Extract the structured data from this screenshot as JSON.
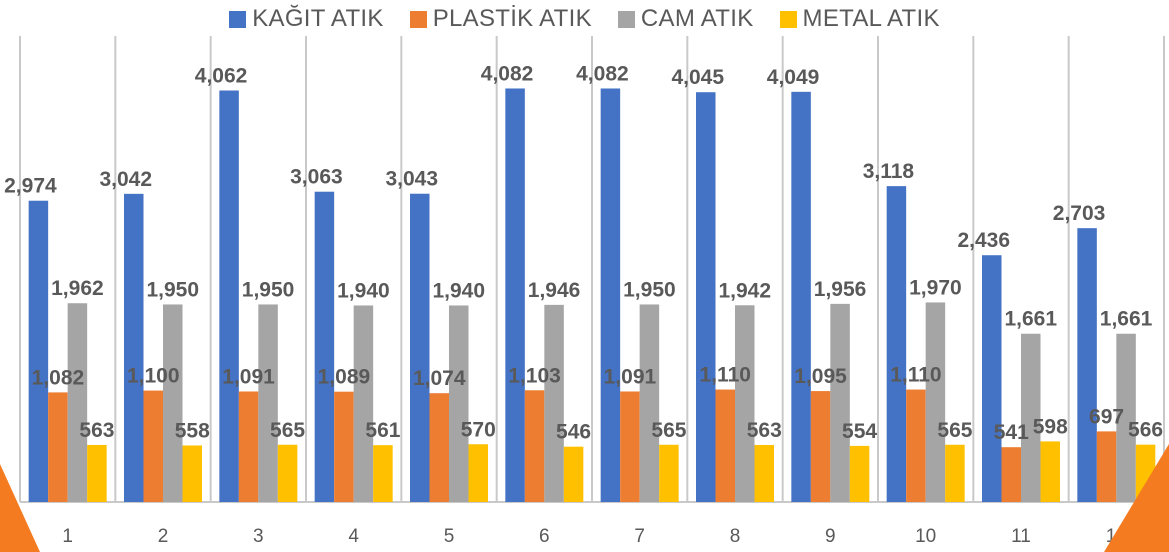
{
  "chart_data": {
    "type": "bar",
    "categories": [
      "1",
      "2",
      "3",
      "4",
      "5",
      "6",
      "7",
      "8",
      "9",
      "10",
      "11",
      "12"
    ],
    "series": [
      {
        "name": "KAĞIT ATIK",
        "color": "#4472C4",
        "values": [
          2974,
          3042,
          4062,
          3063,
          3043,
          4082,
          4082,
          4045,
          4049,
          3118,
          2436,
          2703
        ],
        "labels": [
          "2,974",
          "3,042",
          "4,062",
          "3,063",
          "3,043",
          "4,082",
          "4,082",
          "4,045",
          "4,049",
          "3,118",
          "2,436",
          "2,703"
        ]
      },
      {
        "name": "PLASTİK ATIK",
        "color": "#ED7D31",
        "values": [
          1082,
          1100,
          1091,
          1089,
          1074,
          1103,
          1091,
          1110,
          1095,
          1110,
          541,
          697
        ],
        "labels": [
          "1,082",
          "1,100",
          "1,091",
          "1,089",
          "1,074",
          "1,103",
          "1,091",
          "1,110",
          "1,095",
          "1,110",
          "541",
          "697"
        ]
      },
      {
        "name": "CAM ATIK",
        "color": "#A5A5A5",
        "values": [
          1962,
          1950,
          1950,
          1940,
          1940,
          1946,
          1950,
          1942,
          1956,
          1970,
          1661,
          1661
        ],
        "labels": [
          "1,962",
          "1,950",
          "1,950",
          "1,940",
          "1,940",
          "1,946",
          "1,950",
          "1,942",
          "1,956",
          "1,970",
          "1,661",
          "1,661"
        ]
      },
      {
        "name": "METAL ATIK",
        "color": "#FFC000",
        "values": [
          563,
          558,
          565,
          561,
          570,
          546,
          565,
          563,
          554,
          565,
          598,
          566
        ],
        "labels": [
          "563",
          "558",
          "565",
          "561",
          "570",
          "546",
          "565",
          "563",
          "554",
          "565",
          "598",
          "566"
        ]
      }
    ],
    "ylim": [
      0,
      4600
    ],
    "grid": "vertical",
    "legend_position": "top",
    "value_labels": true
  },
  "accent_color": "#F47B20"
}
